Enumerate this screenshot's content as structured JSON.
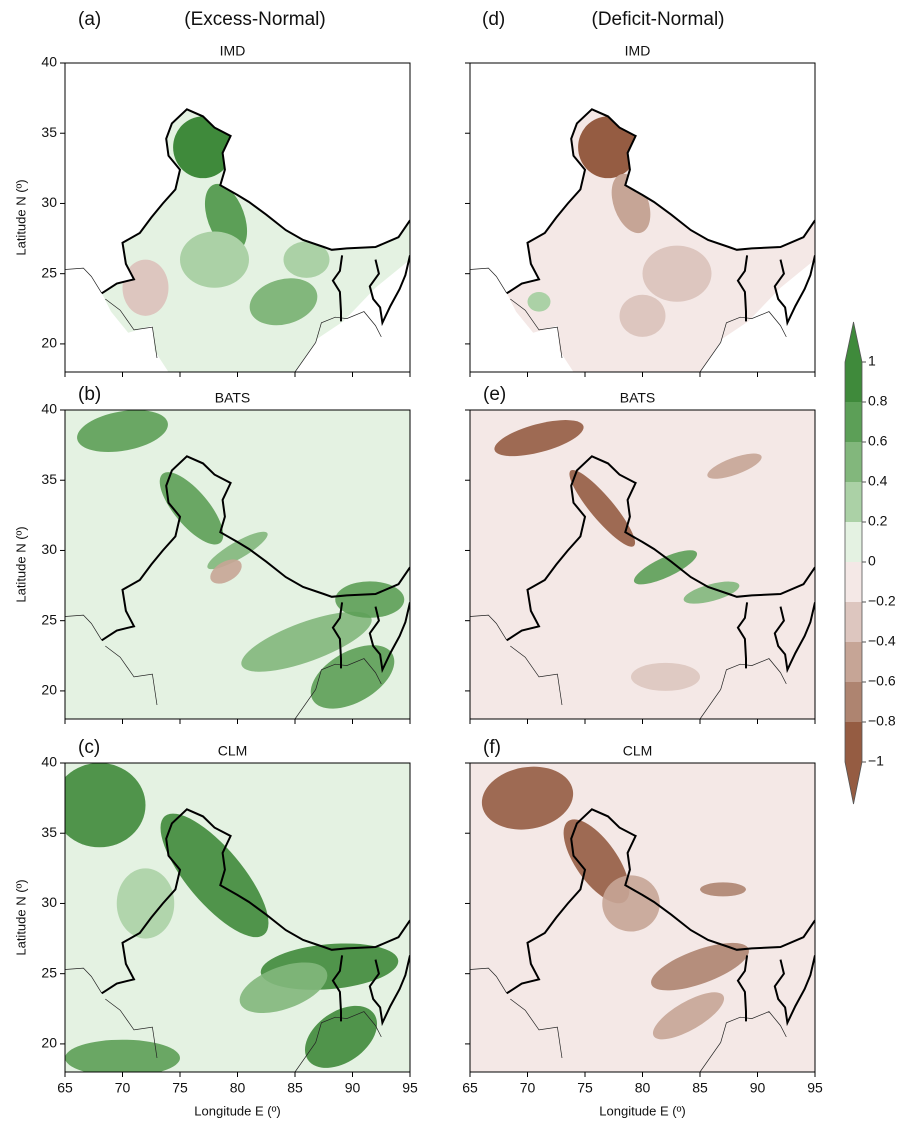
{
  "chart_data": {
    "type": "contour-map",
    "column_headers": [
      "(Excess-Normal)",
      "(Deficit-Normal)"
    ],
    "panels": [
      {
        "label": "(a)",
        "title": "IMD"
      },
      {
        "label": "(b)",
        "title": "BATS"
      },
      {
        "label": "(c)",
        "title": "CLM"
      },
      {
        "label": "(d)",
        "title": "IMD"
      },
      {
        "label": "(e)",
        "title": "BATS"
      },
      {
        "label": "(f)",
        "title": "CLM"
      }
    ],
    "xlabel": "Longitude E (º)",
    "ylabel": "Latitude N (º)",
    "xlim": [
      65,
      95
    ],
    "xticks": [
      65,
      70,
      75,
      80,
      85,
      90,
      95
    ],
    "ylim": [
      18,
      40
    ],
    "yticks": [
      20,
      25,
      30,
      35,
      40
    ],
    "colorbar": {
      "ticks": [
        1,
        0.8,
        0.6,
        0.4,
        0.2,
        0,
        {
          "value": -0.2,
          "label": "−0.2"
        },
        {
          "value": -0.4,
          "label": "−0.4"
        },
        {
          "value": -0.6,
          "label": "−0.6"
        },
        {
          "value": -0.8,
          "label": "−0.8"
        },
        {
          "value": -1,
          "label": "−1"
        }
      ],
      "colors": [
        "#3f8a3b",
        "#5c9f57",
        "#82b77c",
        "#abd1a6",
        "#e4f2e2",
        "#f4e8e6",
        "#ddc6bf",
        "#c6a596",
        "#ae8470",
        "#955c42"
      ]
    }
  }
}
